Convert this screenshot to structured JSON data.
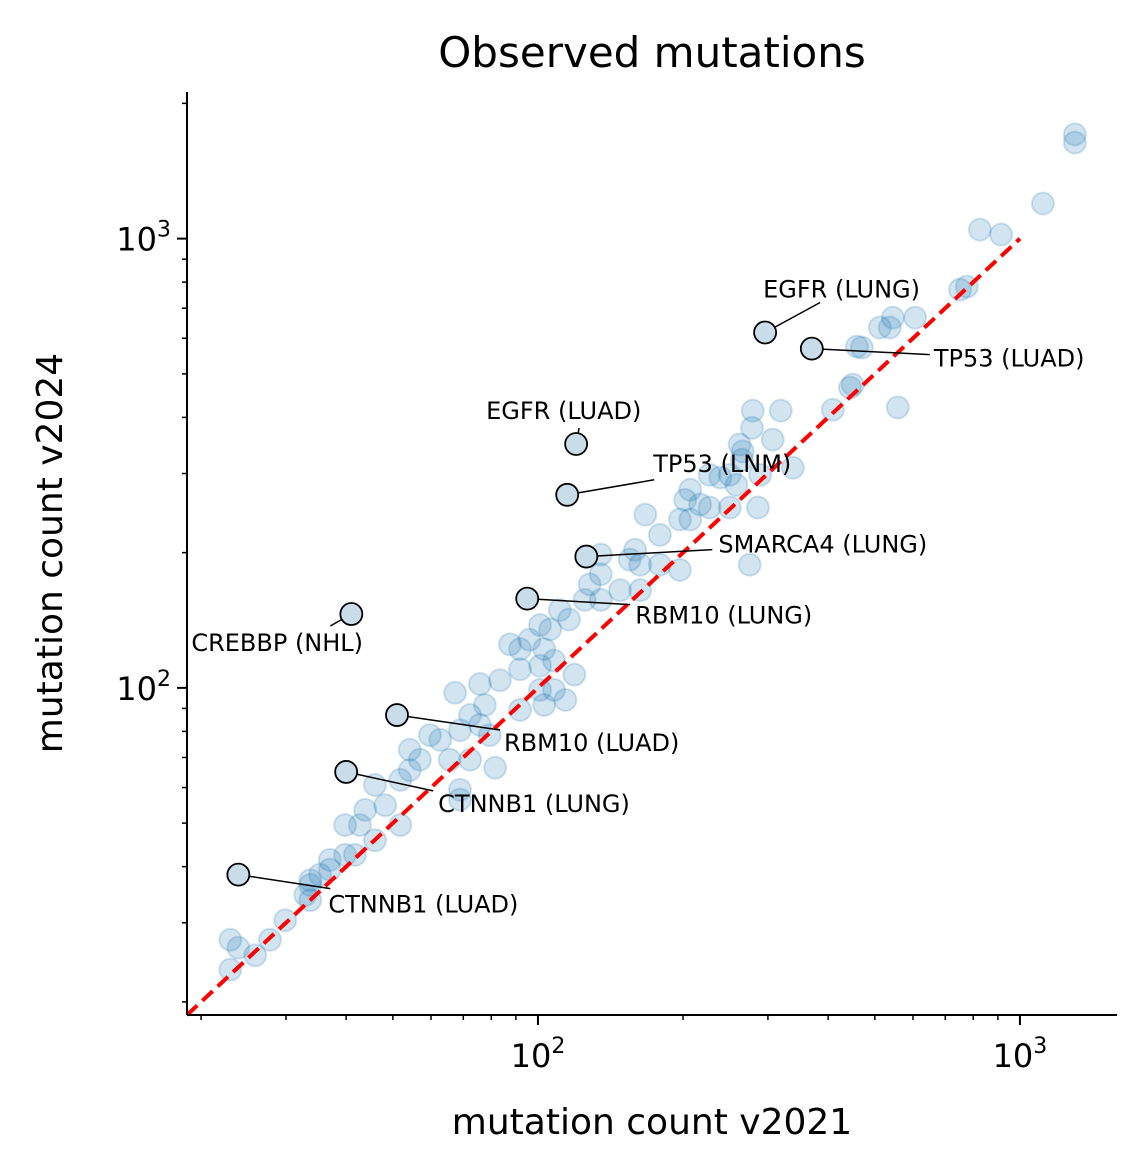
{
  "chart_data": {
    "type": "scatter",
    "title": "Observed mutations",
    "xlabel": "mutation count v2021",
    "ylabel": "mutation count v2024",
    "xscale": "log",
    "yscale": "log",
    "xlim": [
      18.7,
      1590
    ],
    "ylim": [
      18.7,
      2120
    ],
    "xticks": [
      {
        "value": 100,
        "base": "10",
        "exp": "2"
      },
      {
        "value": 1000,
        "base": "10",
        "exp": "3"
      }
    ],
    "yticks": [
      {
        "value": 100,
        "base": "10",
        "exp": "2"
      },
      {
        "value": 1000,
        "base": "10",
        "exp": "3"
      }
    ],
    "grid": false,
    "reference_line": {
      "type": "y=x",
      "from": 18.7,
      "to": 1000,
      "color": "#ff0000",
      "style": "dashed"
    },
    "point_color": "#1f77b4",
    "highlight_color": "#c9dcea",
    "points": [
      [
        1300,
        1706
      ],
      [
        1300,
        1636
      ],
      [
        1116,
        1197
      ],
      [
        826,
        1047
      ],
      [
        914,
        1021
      ],
      [
        776,
        782
      ],
      [
        751,
        770
      ],
      [
        606,
        667
      ],
      [
        545,
        667
      ],
      [
        537,
        634
      ],
      [
        512,
        634
      ],
      [
        459,
        575
      ],
      [
        470,
        572
      ],
      [
        444,
        466
      ],
      [
        450,
        473
      ],
      [
        409,
        416
      ],
      [
        558,
        421
      ],
      [
        319,
        414
      ],
      [
        279,
        414
      ],
      [
        278,
        379
      ],
      [
        307,
        357
      ],
      [
        262,
        348
      ],
      [
        266,
        336
      ],
      [
        265,
        322
      ],
      [
        250,
        298
      ],
      [
        239,
        294
      ],
      [
        227,
        298
      ],
      [
        338,
        309
      ],
      [
        289,
        298
      ],
      [
        258,
        283
      ],
      [
        207,
        276
      ],
      [
        202,
        262
      ],
      [
        217,
        256
      ],
      [
        227,
        252
      ],
      [
        250,
        252
      ],
      [
        286,
        252
      ],
      [
        167,
        243
      ],
      [
        197,
        237
      ],
      [
        179,
        219
      ],
      [
        207,
        237
      ],
      [
        159,
        203
      ],
      [
        135,
        198
      ],
      [
        155,
        193
      ],
      [
        163,
        188
      ],
      [
        179,
        188
      ],
      [
        197,
        183
      ],
      [
        275,
        188
      ],
      [
        135,
        179
      ],
      [
        128,
        170
      ],
      [
        148,
        165
      ],
      [
        163,
        165
      ],
      [
        135,
        157
      ],
      [
        125,
        157
      ],
      [
        111,
        149
      ],
      [
        116,
        142
      ],
      [
        101,
        138
      ],
      [
        106,
        135
      ],
      [
        96,
        128
      ],
      [
        87.5,
        125
      ],
      [
        91.8,
        122
      ],
      [
        103,
        122
      ],
      [
        108,
        115
      ],
      [
        101,
        112
      ],
      [
        91.8,
        110
      ],
      [
        119,
        107
      ],
      [
        75.8,
        102
      ],
      [
        83.4,
        104
      ],
      [
        101,
        99
      ],
      [
        108,
        99
      ],
      [
        114,
        94
      ],
      [
        103,
        91.6
      ],
      [
        91.8,
        89.3
      ],
      [
        67.3,
        97.5
      ],
      [
        77.6,
        91.6
      ],
      [
        72.3,
        87
      ],
      [
        75.8,
        82.7
      ],
      [
        79.4,
        78.5
      ],
      [
        68.9,
        80.5
      ],
      [
        59.7,
        78.5
      ],
      [
        62.7,
        76.6
      ],
      [
        54.2,
        72.8
      ],
      [
        56.9,
        69.2
      ],
      [
        65.6,
        69.2
      ],
      [
        72.3,
        69.2
      ],
      [
        81.5,
        66.4
      ],
      [
        51.8,
        62.4
      ],
      [
        54.2,
        65.6
      ],
      [
        68.9,
        59.3
      ],
      [
        68.9,
        56.4
      ],
      [
        45.9,
        60.8
      ],
      [
        48.2,
        54.8
      ],
      [
        43.8,
        53.5
      ],
      [
        51.8,
        49.5
      ],
      [
        39.8,
        49.5
      ],
      [
        42.7,
        49.5
      ],
      [
        45.9,
        45.8
      ],
      [
        39.8,
        42.5
      ],
      [
        37.0,
        41.4
      ],
      [
        41.7,
        42.5
      ],
      [
        37.0,
        39.4
      ],
      [
        35.3,
        38.4
      ],
      [
        33.7,
        36.4
      ],
      [
        32.9,
        34.6
      ],
      [
        33.7,
        33.7
      ],
      [
        29.9,
        30.4
      ],
      [
        27.8,
        27.5
      ],
      [
        25.9,
        25.4
      ],
      [
        23.0,
        27.5
      ],
      [
        23.9,
        26.4
      ],
      [
        23.0,
        23.6
      ],
      [
        33.7,
        37.3
      ]
    ],
    "annotations": [
      {
        "label": "EGFR (LUNG)",
        "x": 296,
        "y": 618
      },
      {
        "label": "TP53 (LUAD)",
        "x": 370,
        "y": 569
      },
      {
        "label": "EGFR (LUAD)",
        "x": 120,
        "y": 349
      },
      {
        "label": "TP53 (LNM)",
        "x": 115,
        "y": 269
      },
      {
        "label": "SMARCA4 (LUNG)",
        "x": 126,
        "y": 196
      },
      {
        "label": "RBM10 (LUNG)",
        "x": 95,
        "y": 158
      },
      {
        "label": "CREBBP (NHL)",
        "x": 41,
        "y": 146
      },
      {
        "label": "RBM10 (LUAD)",
        "x": 51,
        "y": 87
      },
      {
        "label": "CTNNB1 (LUNG)",
        "x": 40,
        "y": 65
      },
      {
        "label": "CTNNB1 (LUAD)",
        "x": 23.9,
        "y": 38.4
      }
    ]
  }
}
